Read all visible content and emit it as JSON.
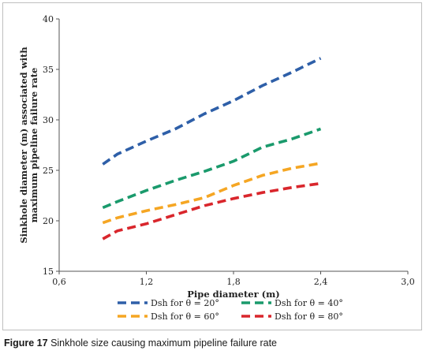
{
  "caption": {
    "label": "Figure 17",
    "text": "Sinkhole size causing maximum pipeline failure rate"
  },
  "chart_data": {
    "type": "line",
    "xlabel": "Pipe diameter (m)",
    "ylabel_lines": [
      "Sinkhole diameter (m) associated with",
      "maximum pipeline failure rate"
    ],
    "xlim": [
      0.6,
      3.0
    ],
    "ylim": [
      15,
      40
    ],
    "x_ticks": [
      0.6,
      1.2,
      1.8,
      2.4,
      3.0
    ],
    "x_tick_labels": [
      "0,6",
      "1,2",
      "1,8",
      "2,4",
      "3,0"
    ],
    "y_ticks": [
      15,
      20,
      25,
      30,
      35,
      40
    ],
    "y_tick_labels": [
      "15",
      "20",
      "25",
      "30",
      "35",
      "40"
    ],
    "grid": false,
    "legend_position": "bottom",
    "series": [
      {
        "name": "Dsh for θ = 20°",
        "color": "#2e5fa8",
        "points": [
          [
            0.9,
            25.6
          ],
          [
            1.0,
            26.6
          ],
          [
            1.2,
            27.9
          ],
          [
            1.4,
            29.1
          ],
          [
            1.6,
            30.6
          ],
          [
            1.8,
            31.9
          ],
          [
            2.0,
            33.4
          ],
          [
            2.2,
            34.7
          ],
          [
            2.4,
            36.1
          ]
        ]
      },
      {
        "name": "Dsh for θ = 40°",
        "color": "#1a9a6c",
        "points": [
          [
            0.9,
            21.3
          ],
          [
            1.0,
            21.9
          ],
          [
            1.2,
            23.0
          ],
          [
            1.4,
            24.0
          ],
          [
            1.6,
            24.9
          ],
          [
            1.8,
            25.9
          ],
          [
            2.0,
            27.3
          ],
          [
            2.2,
            28.1
          ],
          [
            2.4,
            29.1
          ]
        ]
      },
      {
        "name": "Dsh for θ = 60°",
        "color": "#f5a623",
        "points": [
          [
            0.9,
            19.8
          ],
          [
            1.0,
            20.3
          ],
          [
            1.2,
            21.0
          ],
          [
            1.4,
            21.6
          ],
          [
            1.6,
            22.3
          ],
          [
            1.8,
            23.5
          ],
          [
            2.0,
            24.5
          ],
          [
            2.2,
            25.2
          ],
          [
            2.4,
            25.7
          ]
        ]
      },
      {
        "name": "Dsh for θ = 80°",
        "color": "#d9262c",
        "points": [
          [
            0.9,
            18.2
          ],
          [
            1.0,
            19.0
          ],
          [
            1.2,
            19.7
          ],
          [
            1.4,
            20.6
          ],
          [
            1.6,
            21.5
          ],
          [
            1.8,
            22.2
          ],
          [
            2.0,
            22.8
          ],
          [
            2.2,
            23.3
          ],
          [
            2.4,
            23.7
          ]
        ]
      }
    ]
  }
}
